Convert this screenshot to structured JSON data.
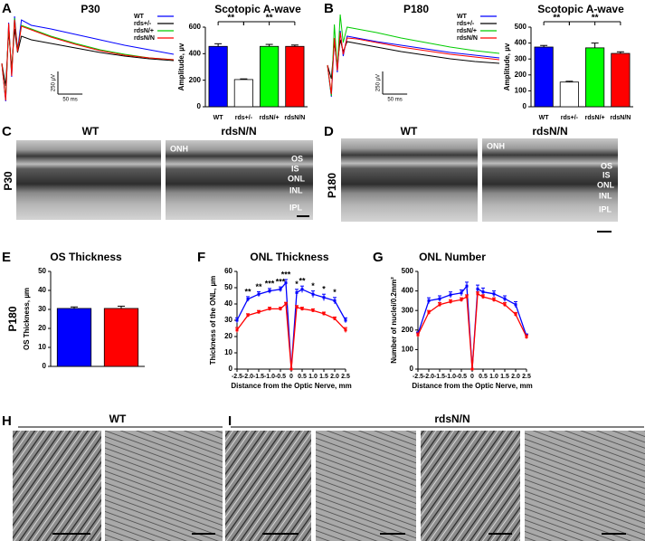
{
  "panel_labels": [
    "A",
    "B",
    "C",
    "D",
    "E",
    "F",
    "G",
    "H",
    "I"
  ],
  "chart_data": [
    {
      "type": "trace",
      "title": "P30",
      "x": [
        0,
        8,
        14,
        20,
        26,
        32,
        40,
        60,
        100,
        150,
        200,
        250,
        300,
        350
      ],
      "series": [
        {
          "name": "WT",
          "color": "#0000ff",
          "values": [
            0,
            -420,
            450,
            -150,
            520,
            150,
            480,
            420,
            380,
            320,
            260,
            200,
            150,
            100
          ]
        },
        {
          "name": "rds+/-",
          "color": "#000000",
          "values": [
            0,
            -250,
            350,
            -50,
            380,
            120,
            300,
            260,
            220,
            170,
            120,
            80,
            50,
            30
          ]
        },
        {
          "name": "rdsN/+",
          "color": "#00cc00",
          "values": [
            0,
            -400,
            420,
            -120,
            500,
            140,
            420,
            380,
            300,
            220,
            150,
            100,
            60,
            40
          ]
        },
        {
          "name": "rdsN/N",
          "color": "#ff0000",
          "values": [
            0,
            -410,
            440,
            -140,
            480,
            130,
            410,
            370,
            290,
            210,
            140,
            90,
            60,
            40
          ]
        }
      ],
      "scale_bars": {
        "y": {
          "value": 250,
          "label": "250 µV"
        },
        "x": {
          "value": 50,
          "label": "50 ms"
        }
      }
    },
    {
      "type": "bar",
      "title": "Scotopic A-wave",
      "ylabel": "Amplitude, µv",
      "categories": [
        "WT",
        "rds+/-",
        "rdsN/+",
        "rdsN/N"
      ],
      "values": [
        455,
        205,
        455,
        455
      ],
      "errors": [
        20,
        5,
        15,
        10
      ],
      "colors": [
        "#0000ff",
        "#ffffff",
        "#00ff00",
        "#ff0000"
      ],
      "ylim": [
        0,
        600
      ],
      "yticks": [
        0,
        200,
        400,
        600
      ],
      "significance": [
        {
          "label": "**",
          "from": 0,
          "to": 1
        },
        {
          "label": "**",
          "from": 1,
          "to": 3
        }
      ]
    },
    {
      "type": "trace",
      "title": "P180",
      "x": [
        0,
        8,
        14,
        20,
        26,
        32,
        40,
        60,
        100,
        150,
        200,
        250,
        300,
        350
      ],
      "series": [
        {
          "name": "WT",
          "color": "#0000ff",
          "values": [
            0,
            -350,
            300,
            -80,
            380,
            100,
            320,
            300,
            260,
            220,
            180,
            140,
            110,
            80
          ]
        },
        {
          "name": "rds+/-",
          "color": "#000000",
          "values": [
            0,
            -150,
            250,
            0,
            280,
            150,
            260,
            240,
            200,
            150,
            110,
            70,
            40,
            20
          ]
        },
        {
          "name": "rdsN/+",
          "color": "#00cc00",
          "values": [
            0,
            -340,
            450,
            -50,
            560,
            250,
            420,
            400,
            360,
            300,
            250,
            200,
            160,
            130
          ]
        },
        {
          "name": "rdsN/N",
          "color": "#ff0000",
          "values": [
            0,
            -320,
            300,
            -60,
            360,
            120,
            300,
            290,
            250,
            200,
            160,
            120,
            90,
            60
          ]
        }
      ],
      "scale_bars": {
        "y": {
          "value": 250,
          "label": "250 µV"
        },
        "x": {
          "value": 50,
          "label": "50 ms"
        }
      }
    },
    {
      "type": "bar",
      "title": "Scotopic A-wave",
      "ylabel": "Amplitude, µv",
      "categories": [
        "WT",
        "rds+/-",
        "rdsN/+",
        "rdsN/N"
      ],
      "values": [
        375,
        155,
        370,
        335
      ],
      "errors": [
        10,
        5,
        30,
        10
      ],
      "colors": [
        "#0000ff",
        "#ffffff",
        "#00ff00",
        "#ff0000"
      ],
      "ylim": [
        0,
        500
      ],
      "yticks": [
        0,
        100,
        200,
        300,
        400,
        500
      ],
      "significance": [
        {
          "label": "**",
          "from": 0,
          "to": 1
        },
        {
          "label": "**",
          "from": 1,
          "to": 3
        }
      ]
    },
    {
      "type": "bar",
      "title": "OS Thickness",
      "ylabel": "OS Thickness, µm",
      "row_label": "P180",
      "values": [
        30.5,
        30.5
      ],
      "errors": [
        0.8,
        1.2
      ],
      "colors": [
        "#0000ff",
        "#ff0000"
      ],
      "ylim": [
        0,
        50
      ],
      "yticks": [
        0,
        10,
        20,
        30,
        40,
        50
      ]
    },
    {
      "type": "line",
      "title": "ONL Thickness",
      "ylabel": "Thickness of the ONL, µm",
      "xlabel": "Distance from the Optic Nerve, mm",
      "x": [
        -2.5,
        -2,
        -1.5,
        -1,
        -0.5,
        -0.25,
        0,
        0.25,
        0.5,
        1,
        1.5,
        2,
        2.5
      ],
      "series": [
        {
          "color": "#0000ff",
          "values": [
            30,
            43,
            46,
            48,
            49,
            53,
            0,
            47,
            49,
            46,
            44,
            42,
            30
          ],
          "errors": [
            1.5,
            1.5,
            1.5,
            1.5,
            1.5,
            2,
            0,
            2,
            2,
            2,
            2,
            2,
            1.5
          ]
        },
        {
          "color": "#ff0000",
          "values": [
            24,
            33,
            35,
            37,
            37,
            40,
            0,
            38,
            37,
            36,
            34,
            31,
            24
          ],
          "errors": [
            1.5,
            1,
            1,
            1,
            1,
            1,
            0,
            1,
            1,
            1,
            1,
            1,
            1.5
          ]
        }
      ],
      "xlim": [
        -2.5,
        2.5
      ],
      "ylim": [
        0,
        60
      ],
      "yticks": [
        0,
        10,
        20,
        30,
        40,
        50,
        60
      ],
      "xticks": [
        -2.5,
        {
          "value": -2,
          "label": "-2.0"
        },
        -1.5,
        {
          "value": -1,
          "label": "-1.0"
        },
        -0.5,
        0,
        0.5,
        {
          "value": 1,
          "label": "1.0"
        },
        1.5,
        {
          "value": 2,
          "label": "2.0"
        },
        2.5
      ],
      "annotations": [
        {
          "x": -2,
          "label": "**"
        },
        {
          "x": -1.5,
          "label": "**"
        },
        {
          "x": -1,
          "label": "***"
        },
        {
          "x": -0.5,
          "label": "***"
        },
        {
          "x": -0.25,
          "label": "***"
        },
        {
          "x": 0.25,
          "label": "*"
        },
        {
          "x": 0.5,
          "label": "**"
        },
        {
          "x": 1,
          "label": "*"
        },
        {
          "x": 1.5,
          "label": "*"
        },
        {
          "x": 2,
          "label": "*"
        }
      ]
    },
    {
      "type": "line",
      "title": "ONL Number",
      "ylabel": "Number of nuclei/0.2mm²",
      "xlabel": "Distance from the Optic Nerve, mm",
      "x": [
        -2.5,
        -2,
        -1.5,
        -1,
        -0.5,
        -0.25,
        0,
        0.25,
        0.5,
        1,
        1.5,
        2,
        2.5
      ],
      "series": [
        {
          "color": "#0000ff",
          "values": [
            180,
            350,
            360,
            380,
            390,
            425,
            0,
            410,
            395,
            385,
            360,
            330,
            170
          ],
          "errors": [
            10,
            15,
            15,
            15,
            15,
            20,
            0,
            20,
            20,
            15,
            15,
            15,
            10
          ]
        },
        {
          "color": "#ff0000",
          "values": [
            175,
            290,
            330,
            345,
            355,
            370,
            0,
            385,
            370,
            355,
            330,
            280,
            165
          ],
          "errors": [
            10,
            10,
            10,
            10,
            10,
            10,
            0,
            10,
            10,
            10,
            10,
            10,
            10
          ]
        }
      ],
      "xlim": [
        -2.5,
        2.5
      ],
      "ylim": [
        0,
        500
      ],
      "yticks": [
        0,
        100,
        200,
        300,
        400,
        500
      ],
      "xticks": [
        -2.5,
        {
          "value": -2,
          "label": "-2.0"
        },
        -1.5,
        {
          "value": -1,
          "label": "-1.0"
        },
        -0.5,
        0,
        0.5,
        {
          "value": 1,
          "label": "1.0"
        },
        1.5,
        {
          "value": 2,
          "label": "2.0"
        },
        2.5
      ]
    }
  ],
  "micrographs": {
    "C": {
      "titles": [
        "WT",
        "rdsN/N"
      ],
      "row_label": "P30",
      "onh": "ONH",
      "layers": [
        "OS",
        "IS",
        "ONL",
        "INL",
        "IPL"
      ]
    },
    "D": {
      "titles": [
        "WT",
        "rdsN/N"
      ],
      "row_label": "P180",
      "onh": "ONH",
      "layers": [
        "OS",
        "IS",
        "ONL",
        "INL",
        "IPL"
      ]
    },
    "H": {
      "title": "WT"
    },
    "I": {
      "title": "rdsN/N"
    }
  }
}
